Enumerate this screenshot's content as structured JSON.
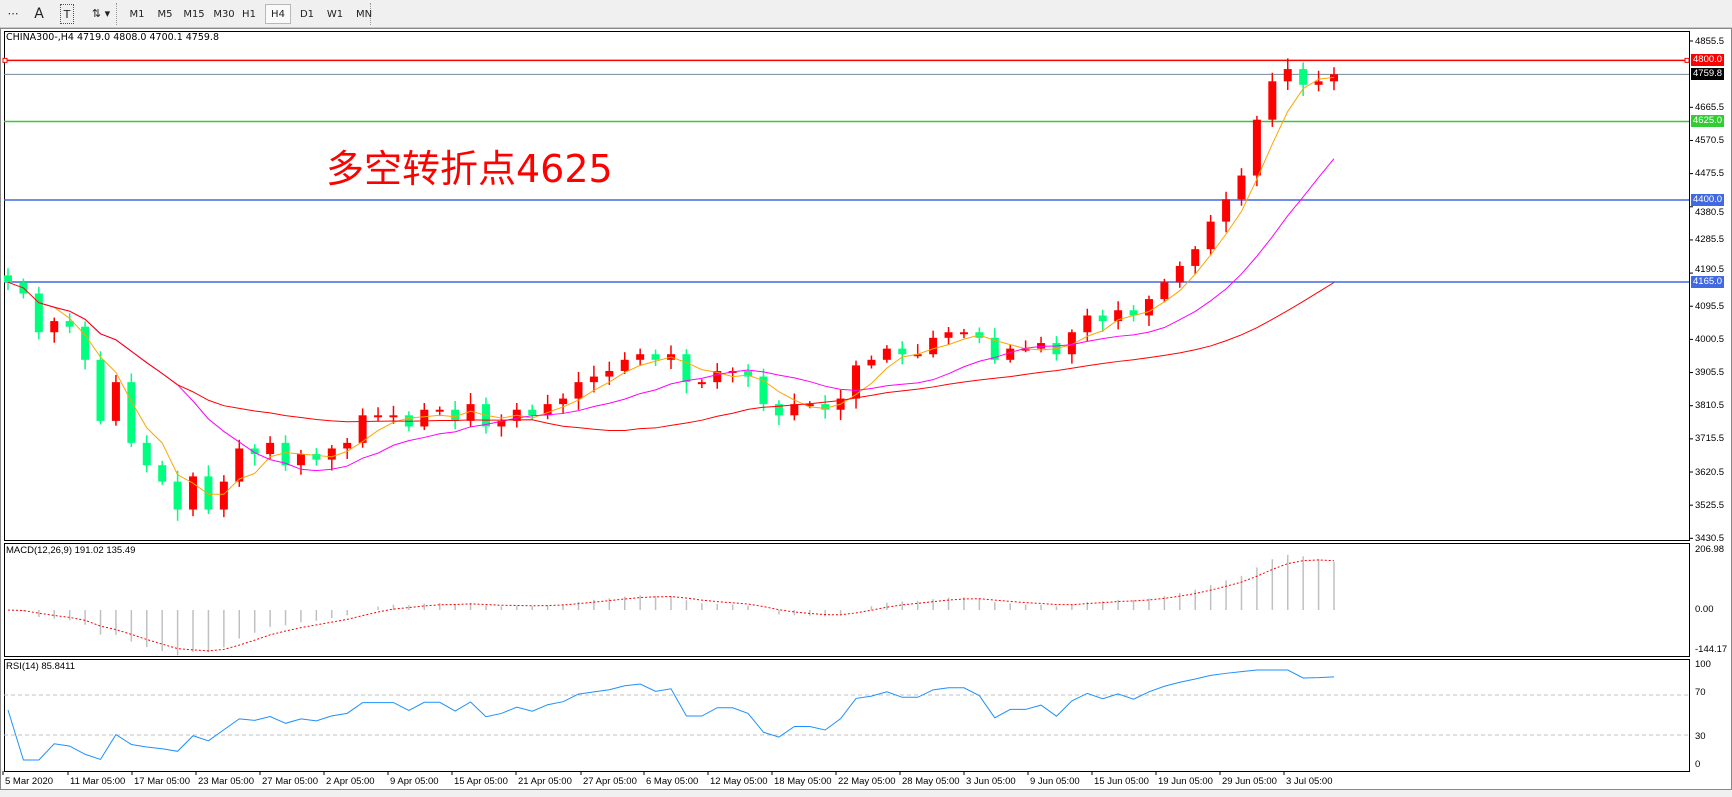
{
  "toolbar": {
    "tools": [
      {
        "icon": "grid-lines-icon",
        "label": ""
      },
      {
        "icon": "text-icon",
        "label": "A"
      },
      {
        "icon": "text-label-icon",
        "label": "T"
      },
      {
        "icon": "arrows-icon",
        "label": ""
      }
    ],
    "timeframes": [
      "M1",
      "M5",
      "M15",
      "M30",
      "H1",
      "H4",
      "D1",
      "W1",
      "MN"
    ],
    "active_timeframe": "H4"
  },
  "chart": {
    "symbol_info": "CHINA300-,H4  4719.0 4808.0 4700.1 4759.8",
    "annotation": "多空转折点4625",
    "price_ticks": [
      "4855.5",
      "4665.5",
      "4570.5",
      "4475.5",
      "4380.5",
      "4285.5",
      "4190.5",
      "4095.5",
      "4000.5",
      "3905.5",
      "3810.5",
      "3715.5",
      "3620.5",
      "3525.5",
      "3430.5"
    ],
    "levels": [
      {
        "value": "4800.0",
        "color": "#ff0000"
      },
      {
        "value": "4759.8",
        "color": "#000000",
        "line": "#778899"
      },
      {
        "value": "4625.0",
        "color": "#32cd32"
      },
      {
        "value": "4400.0",
        "color": "#4169e1"
      },
      {
        "value": "4165.0",
        "color": "#4169e1"
      }
    ],
    "up_color": "#ff0000",
    "down_color": "#00ff7f",
    "ma_colors": [
      "#ffa500",
      "#ff00ff",
      "#ff0000"
    ],
    "closes": [
      4164,
      4132,
      4021,
      4053,
      4037,
      3942,
      3767,
      3878,
      3704,
      3640,
      3593,
      3513,
      3608,
      3513,
      3593,
      3688,
      3672,
      3704,
      3640,
      3672,
      3656,
      3688,
      3704,
      3783,
      3783,
      3783,
      3751,
      3799,
      3799,
      3767,
      3815,
      3751,
      3767,
      3799,
      3783,
      3815,
      3831,
      3878,
      3894,
      3910,
      3942,
      3958,
      3942,
      3958,
      3878,
      3878,
      3910,
      3910,
      3894,
      3815,
      3783,
      3815,
      3815,
      3799,
      3831,
      3926,
      3942,
      3974,
      3958,
      3958,
      4005,
      4021,
      4021,
      4005,
      3942,
      3974,
      3974,
      3990,
      3958,
      4021,
      4069,
      4053,
      4084,
      4069,
      4116,
      4164,
      4211,
      4259,
      4338,
      4402,
      4470,
      4630,
      4740,
      4775,
      4730,
      4740,
      4760
    ],
    "time_labels": [
      "5 Mar 2020",
      "11 Mar 05:00",
      "17 Mar 05:00",
      "23 Mar 05:00",
      "27 Mar 05:00",
      "2 Apr 05:00",
      "9 Apr 05:00",
      "15 Apr 05:00",
      "21 Apr 05:00",
      "27 Apr 05:00",
      "6 May 05:00",
      "12 May 05:00",
      "18 May 05:00",
      "22 May 05:00",
      "28 May 05:00",
      "3 Jun 05:00",
      "9 Jun 05:00",
      "15 Jun 05:00",
      "19 Jun 05:00",
      "29 Jun 05:00",
      "3 Jul 05:00"
    ]
  },
  "macd": {
    "label": "MACD(12,26,9) 191.02 135.49",
    "ticks": [
      "206.98",
      "0.00",
      "-144.17"
    ],
    "hist_color": "#c0c0c0",
    "signal_color": "#ff0000"
  },
  "rsi": {
    "label": "RSI(14) 85.8411",
    "ticks": [
      "100",
      "70",
      "30",
      "0"
    ],
    "levels": [
      70,
      30
    ],
    "color": "#1e90ff"
  }
}
